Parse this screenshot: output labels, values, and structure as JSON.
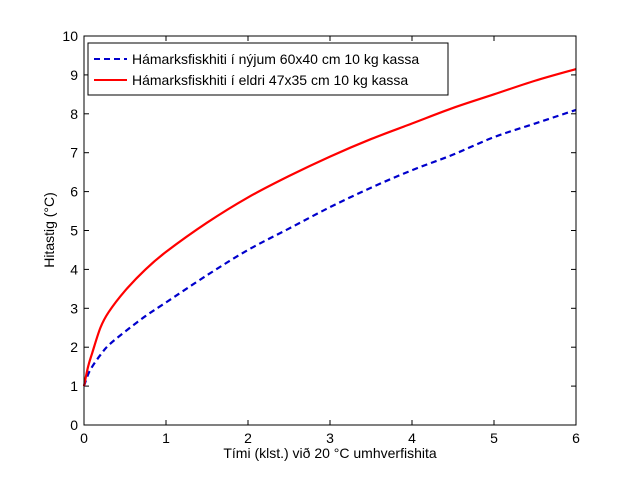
{
  "chart_data": {
    "type": "line",
    "title": "",
    "xlabel": "Tími (klst.) við 20 °C umhverfishita",
    "ylabel": "Hitastig (°C)",
    "xlim": [
      0,
      6
    ],
    "ylim": [
      0,
      10
    ],
    "xticks": [
      "0",
      "1",
      "2",
      "3",
      "4",
      "5",
      "6"
    ],
    "yticks": [
      "0",
      "1",
      "2",
      "3",
      "4",
      "5",
      "6",
      "7",
      "8",
      "9",
      "10"
    ],
    "grid": false,
    "legend_position": "top-left",
    "series": [
      {
        "name": "Hámarksfiskhiti í nýjum 60x40 cm 10 kg kassa",
        "color": "#0000cc",
        "style": "dashed",
        "x": [
          0,
          0.05,
          0.1,
          0.2,
          0.3,
          0.5,
          0.75,
          1,
          1.5,
          2,
          2.5,
          3,
          3.5,
          4,
          4.5,
          5,
          5.5,
          6
        ],
        "y": [
          1.0,
          1.3,
          1.5,
          1.8,
          2.05,
          2.4,
          2.8,
          3.15,
          3.85,
          4.5,
          5.05,
          5.6,
          6.1,
          6.55,
          6.95,
          7.4,
          7.75,
          8.1
        ]
      },
      {
        "name": "Hámarksfiskhiti í eldri 47x35 cm 10 kg kassa",
        "color": "#ff0000",
        "style": "solid",
        "x": [
          0,
          0.05,
          0.1,
          0.2,
          0.3,
          0.5,
          0.75,
          1,
          1.5,
          2,
          2.5,
          3,
          3.5,
          4,
          4.5,
          5,
          5.5,
          6
        ],
        "y": [
          1.0,
          1.5,
          1.85,
          2.5,
          2.9,
          3.45,
          4.0,
          4.45,
          5.2,
          5.85,
          6.4,
          6.9,
          7.35,
          7.75,
          8.15,
          8.5,
          8.85,
          9.15
        ]
      }
    ]
  }
}
